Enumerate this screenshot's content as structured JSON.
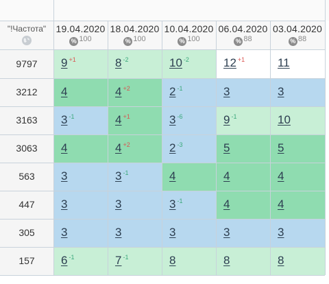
{
  "frequency_header": "\"!Частота\"",
  "columns": [
    {
      "date": "19.04.2020",
      "percent": "100"
    },
    {
      "date": "18.04.2020",
      "percent": "100"
    },
    {
      "date": "10.04.2020",
      "percent": "100"
    },
    {
      "date": "06.04.2020",
      "percent": "88"
    },
    {
      "date": "03.04.2020",
      "percent": "88"
    }
  ],
  "rows": [
    {
      "frequency": "9797",
      "cells": [
        {
          "value": "9",
          "delta": "+1",
          "dir": "down",
          "color": "lgreen"
        },
        {
          "value": "8",
          "delta": "-2",
          "dir": "up",
          "color": "lgreen"
        },
        {
          "value": "10",
          "delta": "-2",
          "dir": "up",
          "color": "lgreen"
        },
        {
          "value": "12",
          "delta": "+1",
          "dir": "down",
          "color": "white"
        },
        {
          "value": "11",
          "delta": "",
          "dir": "",
          "color": "white"
        }
      ]
    },
    {
      "frequency": "3212",
      "cells": [
        {
          "value": "4",
          "delta": "",
          "dir": "",
          "color": "green"
        },
        {
          "value": "4",
          "delta": "+2",
          "dir": "down",
          "color": "green"
        },
        {
          "value": "2",
          "delta": "-1",
          "dir": "up",
          "color": "blue"
        },
        {
          "value": "3",
          "delta": "",
          "dir": "",
          "color": "blue"
        },
        {
          "value": "3",
          "delta": "",
          "dir": "",
          "color": "blue"
        }
      ]
    },
    {
      "frequency": "3163",
      "cells": [
        {
          "value": "3",
          "delta": "-1",
          "dir": "up",
          "color": "blue"
        },
        {
          "value": "4",
          "delta": "+1",
          "dir": "down",
          "color": "green"
        },
        {
          "value": "3",
          "delta": "-6",
          "dir": "up",
          "color": "blue"
        },
        {
          "value": "9",
          "delta": "-1",
          "dir": "up",
          "color": "lgreen"
        },
        {
          "value": "10",
          "delta": "",
          "dir": "",
          "color": "lgreen"
        }
      ]
    },
    {
      "frequency": "3063",
      "cells": [
        {
          "value": "4",
          "delta": "",
          "dir": "",
          "color": "green"
        },
        {
          "value": "4",
          "delta": "+2",
          "dir": "down",
          "color": "green"
        },
        {
          "value": "2",
          "delta": "-3",
          "dir": "up",
          "color": "blue"
        },
        {
          "value": "5",
          "delta": "",
          "dir": "",
          "color": "green"
        },
        {
          "value": "5",
          "delta": "",
          "dir": "",
          "color": "green"
        }
      ]
    },
    {
      "frequency": "563",
      "cells": [
        {
          "value": "3",
          "delta": "",
          "dir": "",
          "color": "blue"
        },
        {
          "value": "3",
          "delta": "-1",
          "dir": "up",
          "color": "blue"
        },
        {
          "value": "4",
          "delta": "",
          "dir": "",
          "color": "green"
        },
        {
          "value": "4",
          "delta": "",
          "dir": "",
          "color": "green"
        },
        {
          "value": "4",
          "delta": "",
          "dir": "",
          "color": "green"
        }
      ]
    },
    {
      "frequency": "447",
      "cells": [
        {
          "value": "3",
          "delta": "",
          "dir": "",
          "color": "blue"
        },
        {
          "value": "3",
          "delta": "",
          "dir": "",
          "color": "blue"
        },
        {
          "value": "3",
          "delta": "-1",
          "dir": "up",
          "color": "blue"
        },
        {
          "value": "4",
          "delta": "",
          "dir": "",
          "color": "green"
        },
        {
          "value": "4",
          "delta": "",
          "dir": "",
          "color": "green"
        }
      ]
    },
    {
      "frequency": "305",
      "cells": [
        {
          "value": "3",
          "delta": "",
          "dir": "",
          "color": "blue"
        },
        {
          "value": "3",
          "delta": "",
          "dir": "",
          "color": "blue"
        },
        {
          "value": "3",
          "delta": "",
          "dir": "",
          "color": "blue"
        },
        {
          "value": "3",
          "delta": "",
          "dir": "",
          "color": "blue"
        },
        {
          "value": "3",
          "delta": "",
          "dir": "",
          "color": "blue"
        }
      ]
    },
    {
      "frequency": "157",
      "cells": [
        {
          "value": "6",
          "delta": "-1",
          "dir": "up",
          "color": "lgreen"
        },
        {
          "value": "7",
          "delta": "-1",
          "dir": "up",
          "color": "lgreen"
        },
        {
          "value": "8",
          "delta": "",
          "dir": "",
          "color": "lgreen"
        },
        {
          "value": "8",
          "delta": "",
          "dir": "",
          "color": "lgreen"
        },
        {
          "value": "8",
          "delta": "",
          "dir": "",
          "color": "lgreen"
        }
      ]
    }
  ],
  "colors": {
    "green": "#8fdcb0",
    "light_green": "#c8efd6",
    "blue": "#b7d8ef",
    "delta_up": "#3aa87a",
    "delta_down": "#d9534f"
  },
  "icons": {
    "percent": "percent-icon",
    "globe": "globe-icon"
  }
}
